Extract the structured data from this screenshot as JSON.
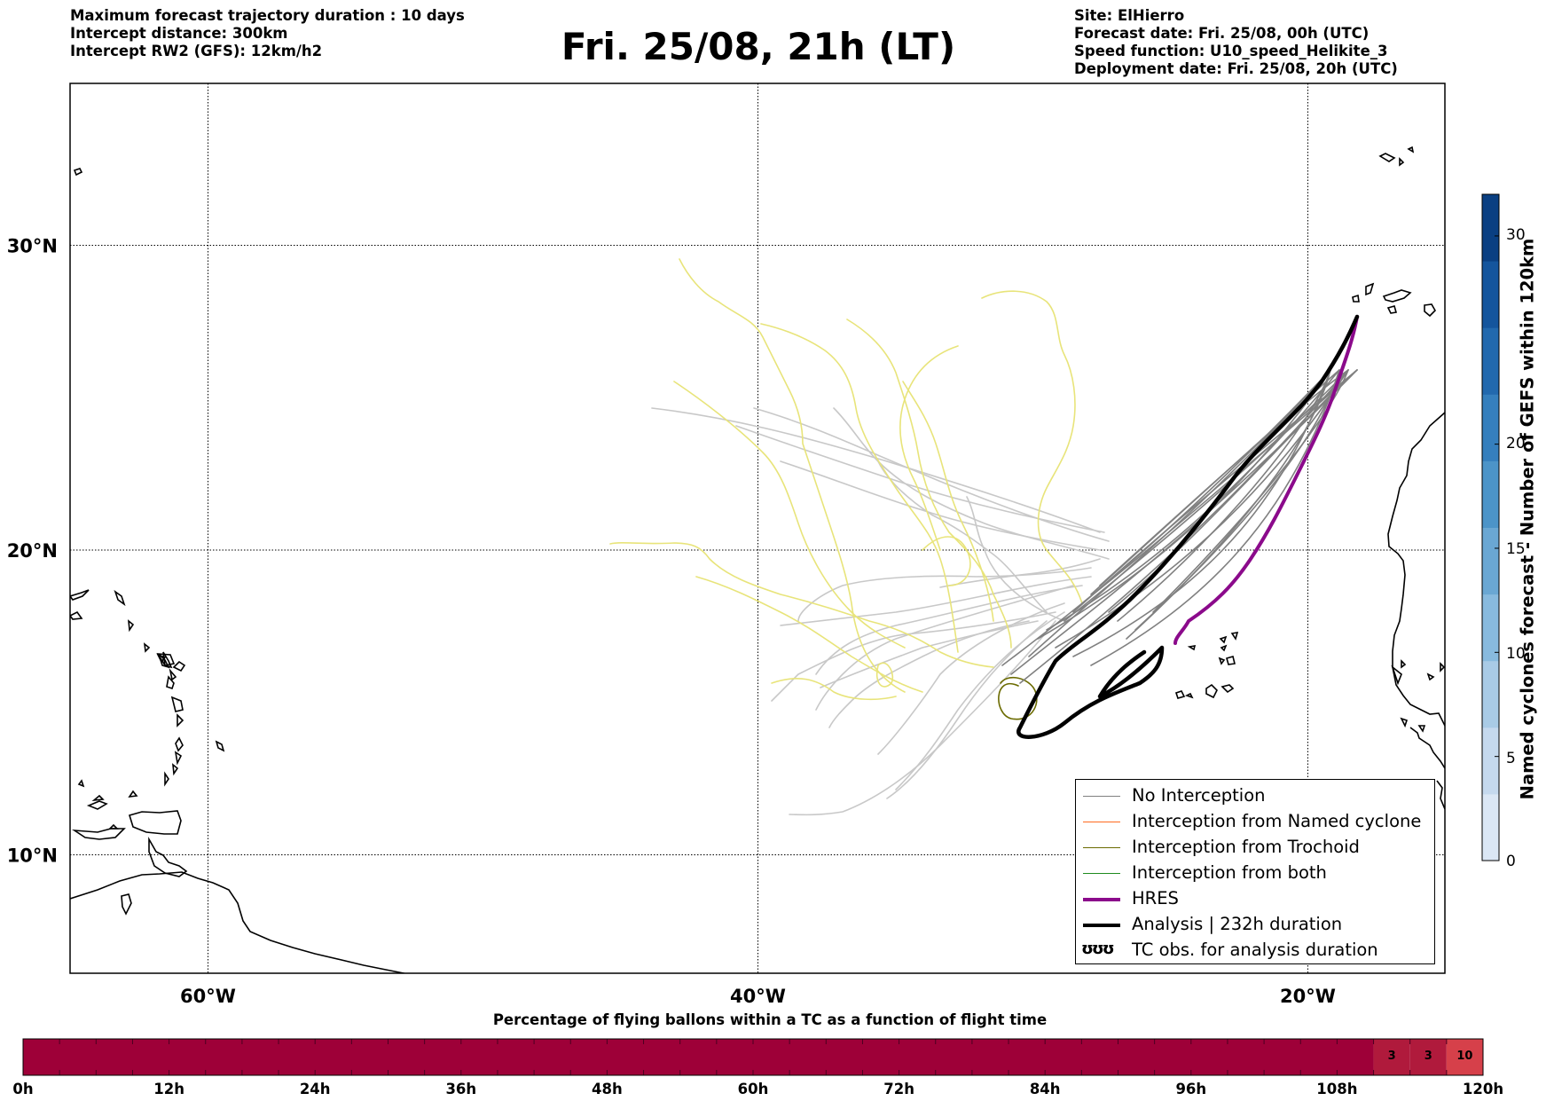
{
  "header_left": [
    "Maximum forecast trajectory duration : 10 days",
    "Intercept distance: 300km",
    "Intercept RW2 (GFS):  12km/h2"
  ],
  "title": "Fri. 25/08, 21h (LT)",
  "header_right": [
    "Site: ElHierro",
    "Forecast date: Fri. 25/08, 00h (UTC)",
    "Speed function: U10_speed_Helikite_3",
    "Deployment date: Fri. 25/08, 20h (UTC)"
  ],
  "map": {
    "lon_range": [
      -65,
      -15
    ],
    "lat_range": [
      5,
      34
    ],
    "lon_ticks": [
      {
        "value": -60,
        "label": "60°W"
      },
      {
        "value": -40,
        "label": "40°W"
      },
      {
        "value": -20,
        "label": "20°W"
      }
    ],
    "lat_ticks": [
      {
        "value": 30,
        "label": "30°N"
      },
      {
        "value": 20,
        "label": "20°N"
      },
      {
        "value": 10,
        "label": "10°N"
      }
    ],
    "colors": {
      "no_interception": "#808080",
      "no_interception_light": "#c8c8c8",
      "named_cyclone": "#ff6a1f",
      "trochoid": "#6b6b00",
      "both": "#1f8c1f",
      "hres": "#8b0a8b",
      "analysis": "#000000",
      "yellow_tracks": "#e8e47a"
    }
  },
  "legend": [
    {
      "key": "no_interception",
      "label": "No Interception"
    },
    {
      "key": "named_cyclone",
      "label": "Interception from Named cyclone"
    },
    {
      "key": "trochoid",
      "label": "Interception from Trochoid"
    },
    {
      "key": "both",
      "label": "Interception from both"
    },
    {
      "key": "hres",
      "label": "HRES"
    },
    {
      "key": "analysis",
      "label": "Analysis | 232h duration"
    },
    {
      "key": "tc_obs",
      "label": "TC obs. for analysis duration",
      "glyph": "ʊʊʊ"
    }
  ],
  "colorbar": {
    "label": "Named cyclones forecast - Number of GEFS within 120km",
    "range": [
      0,
      32
    ],
    "ticks": [
      0,
      5,
      10,
      15,
      20,
      30
    ],
    "colors": [
      "#dbe7f5",
      "#c5d9ee",
      "#a9cbe6",
      "#88bade",
      "#6aa7d3",
      "#4c94c8",
      "#357fbd",
      "#2269ae",
      "#14559d",
      "#0a3f82"
    ]
  },
  "bottom_bar": {
    "title": "Percentage of flying ballons within a TC as a function of flight time",
    "ticks": [
      "0h",
      "12h",
      "24h",
      "36h",
      "48h",
      "60h",
      "72h",
      "84h",
      "96h",
      "108h",
      "120h"
    ],
    "hours_range": [
      0,
      120
    ],
    "segments": [
      {
        "from": 0,
        "to": 111,
        "value": null,
        "color": "#9e0038"
      },
      {
        "from": 111,
        "to": 114,
        "value": "3",
        "color": "#b01a3c"
      },
      {
        "from": 114,
        "to": 117,
        "value": "3",
        "color": "#b01a3c"
      },
      {
        "from": 117,
        "to": 120,
        "value": "10",
        "color": "#d6404a"
      }
    ]
  }
}
